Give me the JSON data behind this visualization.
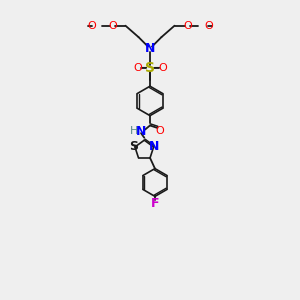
{
  "bg_color": "#efefef",
  "colors": {
    "bond": "#1a1a1a",
    "N": "#0000ff",
    "O": "#ff0000",
    "S_sulfonyl": "#aaaa00",
    "S_thiazole": "#1a1a1a",
    "F": "#cc00cc",
    "H": "#558888"
  },
  "figsize": [
    3.0,
    3.0
  ],
  "dpi": 100
}
